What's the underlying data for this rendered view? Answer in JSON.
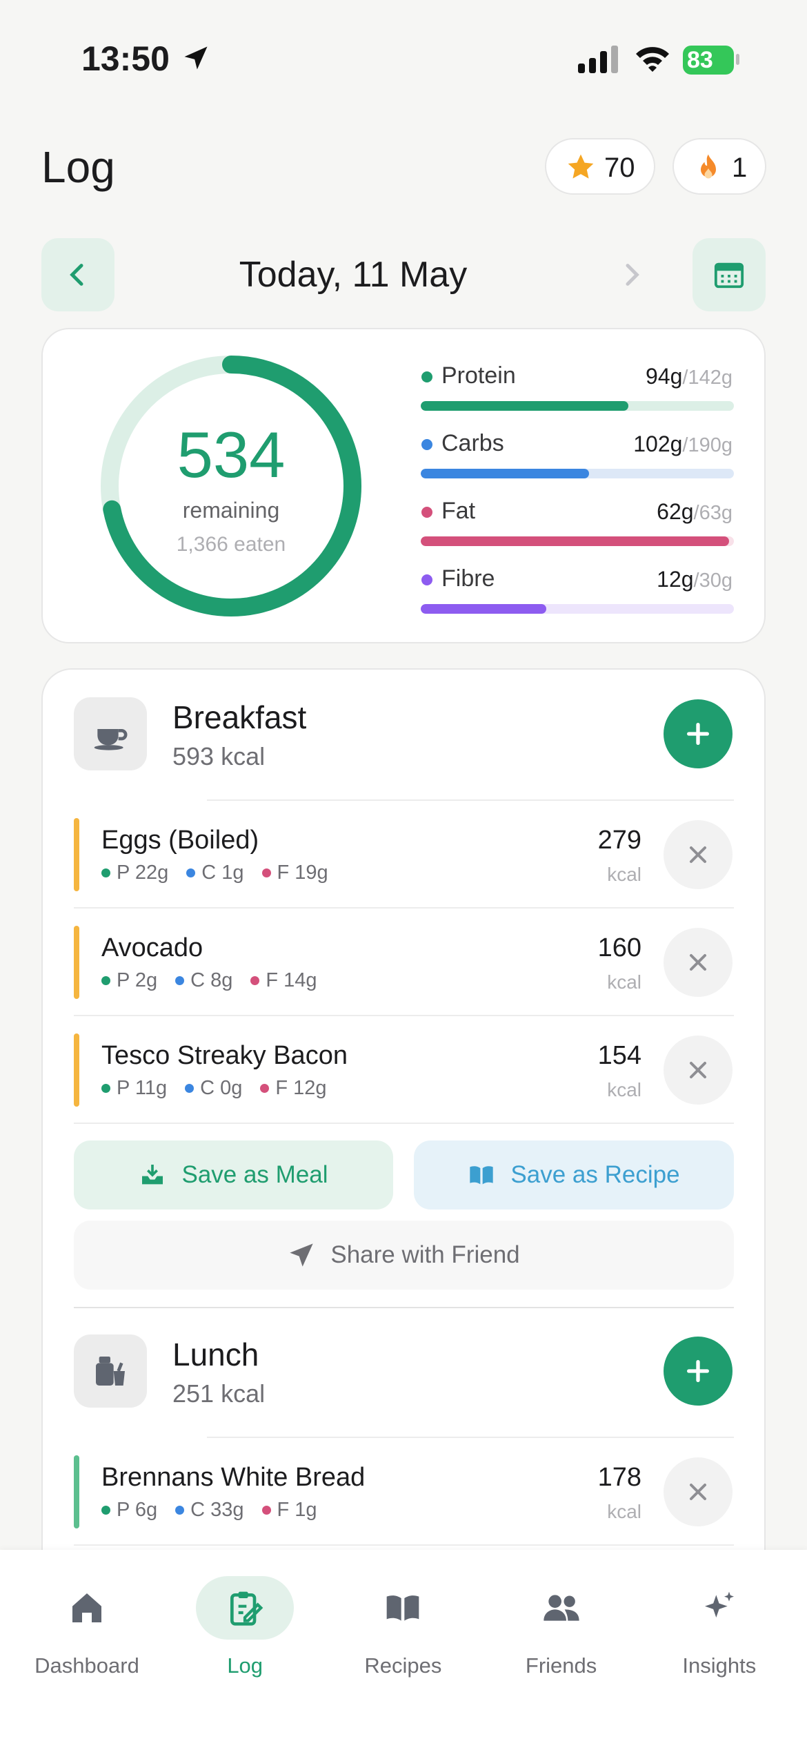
{
  "status_bar": {
    "time": "13:50",
    "battery": "83"
  },
  "header": {
    "title": "Log",
    "stars": "70",
    "streak": "1"
  },
  "date": "Today, 11 May",
  "summary": {
    "remaining": 534,
    "remaining_label": "remaining",
    "eaten": 1366,
    "eaten_label": "1,366 eaten",
    "macros": [
      {
        "name": "Protein",
        "amount": "94g",
        "goal": "/142g",
        "value": 94,
        "target": 142,
        "color": "#1f9d6f",
        "track": "#dcefe6"
      },
      {
        "name": "Carbs",
        "amount": "102g",
        "goal": "/190g",
        "value": 102,
        "target": 190,
        "color": "#3b86e0",
        "track": "#dde8f7"
      },
      {
        "name": "Fat",
        "amount": "62g",
        "goal": "/63g",
        "value": 62,
        "target": 63,
        "color": "#d4507b",
        "track": "#f8e1e9"
      },
      {
        "name": "Fibre",
        "amount": "12g",
        "goal": "/30g",
        "value": 12,
        "target": 30,
        "color": "#8d5cf0",
        "track": "#ede5fc"
      }
    ]
  },
  "meals": [
    {
      "name": "Breakfast",
      "kcal": "593 kcal",
      "accent": "#f5b53f",
      "items": [
        {
          "name": "Eggs (Boiled)",
          "p": "P 22g",
          "c": "C 1g",
          "f": "F 19g",
          "kcal": 279,
          "unit": "kcal"
        },
        {
          "name": "Avocado",
          "p": "P 2g",
          "c": "C 8g",
          "f": "F 14g",
          "kcal": 160,
          "unit": "kcal"
        },
        {
          "name": "Tesco Streaky Bacon",
          "p": "P 11g",
          "c": "C 0g",
          "f": "F 12g",
          "kcal": 154,
          "unit": "kcal"
        }
      ],
      "actions": {
        "save_meal": "Save as Meal",
        "save_recipe": "Save as Recipe",
        "share": "Share with Friend"
      }
    },
    {
      "name": "Lunch",
      "kcal": "251 kcal",
      "accent": "#5cbf8f",
      "items": [
        {
          "name": "Brennans White Bread",
          "p": "P 6g",
          "c": "C 33g",
          "f": "F 1g",
          "kcal": 178,
          "unit": "kcal"
        }
      ]
    }
  ],
  "nav": [
    "Dashboard",
    "Log",
    "Recipes",
    "Friends",
    "Insights"
  ],
  "nav_active": 1
}
